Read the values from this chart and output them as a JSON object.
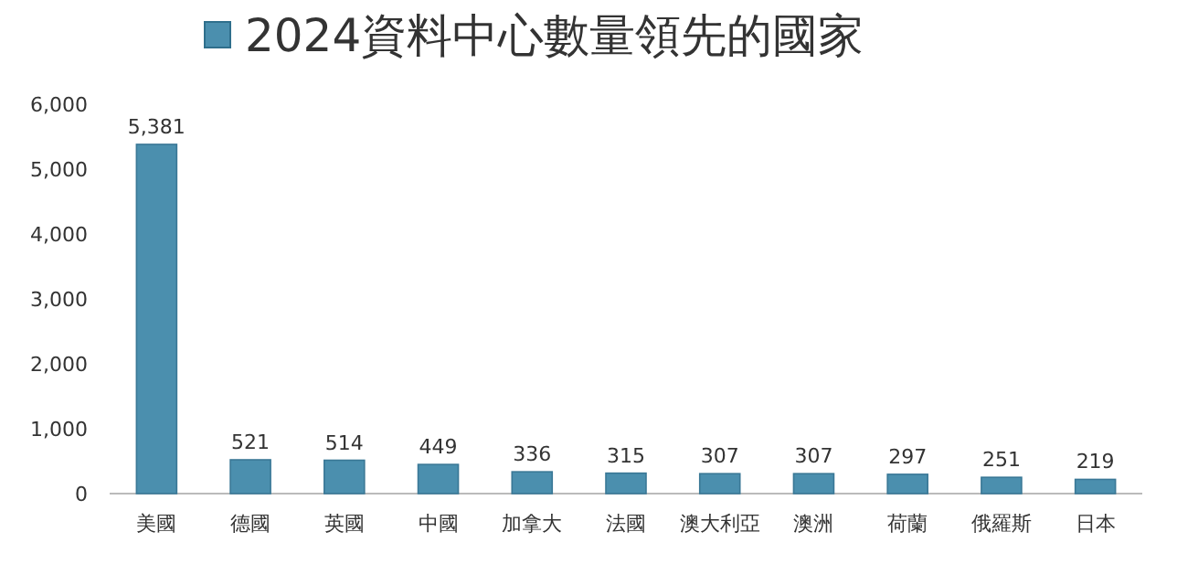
{
  "chart_data": {
    "type": "bar",
    "categories": [
      "美國",
      "德國",
      "英國",
      "中國",
      "加拿大",
      "法國",
      "澳大利亞",
      "澳洲",
      "荷蘭",
      "俄羅斯",
      "日本"
    ],
    "series": [
      {
        "name": "2024資料中心數量領先的國家",
        "color": "#4b8fae",
        "values": [
          5381,
          521,
          514,
          449,
          336,
          315,
          307,
          307,
          297,
          251,
          219
        ],
        "value_labels": [
          "5,381",
          "521",
          "514",
          "449",
          "336",
          "315",
          "307",
          "307",
          "297",
          "251",
          "219"
        ]
      }
    ],
    "ylim": [
      0,
      6000
    ],
    "yticks": [
      0,
      {
        "value": 1000,
        "label": "1,000"
      },
      {
        "value": 2000,
        "label": "2,000"
      },
      {
        "value": 3000,
        "label": "3,000"
      },
      {
        "value": 4000,
        "label": "4,000"
      },
      {
        "value": 5000,
        "label": "5,000"
      },
      {
        "value": 6000,
        "label": "6,000"
      }
    ],
    "legend": "top",
    "grid": false
  }
}
